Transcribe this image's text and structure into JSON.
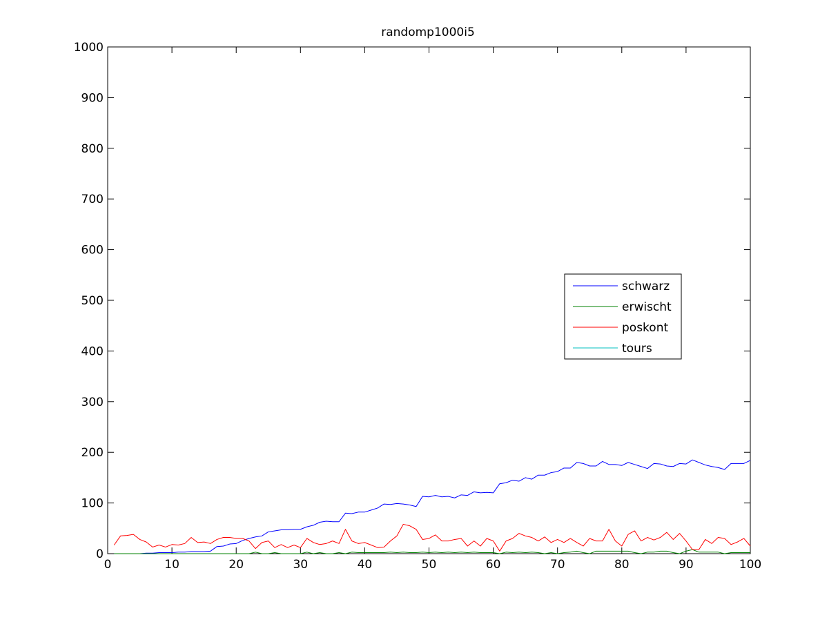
{
  "chart_data": {
    "type": "line",
    "title": "randomp1000i5",
    "xlabel": "",
    "ylabel": "",
    "xlim": [
      0,
      100
    ],
    "ylim": [
      0,
      1000
    ],
    "x_ticks": [
      0,
      10,
      20,
      30,
      40,
      50,
      60,
      70,
      80,
      90,
      100
    ],
    "y_ticks": [
      0,
      100,
      200,
      300,
      400,
      500,
      600,
      700,
      800,
      900,
      1000
    ],
    "grid": false,
    "legend_position": "right-middle",
    "series": [
      {
        "name": "schwarz",
        "color": "#0000ff",
        "x": [
          1,
          2,
          3,
          4,
          5,
          6,
          7,
          8,
          9,
          10,
          11,
          12,
          13,
          14,
          15,
          16,
          17,
          18,
          19,
          20,
          21,
          22,
          23,
          24,
          25,
          26,
          27,
          28,
          29,
          30,
          31,
          32,
          33,
          34,
          35,
          36,
          37,
          38,
          39,
          40,
          41,
          42,
          43,
          44,
          45,
          46,
          47,
          48,
          49,
          50,
          51,
          52,
          53,
          54,
          55,
          56,
          57,
          58,
          59,
          60,
          61,
          62,
          63,
          64,
          65,
          66,
          67,
          68,
          69,
          70,
          71,
          72,
          73,
          74,
          75,
          76,
          77,
          78,
          79,
          80,
          81,
          82,
          83,
          84,
          85,
          86,
          87,
          88,
          89,
          90,
          91,
          92,
          93,
          94,
          95,
          96,
          97,
          98,
          99,
          100
        ],
        "values": [
          0,
          0,
          0,
          0,
          0,
          1,
          1,
          2,
          2,
          2,
          3,
          3,
          4,
          4,
          4,
          5,
          14,
          15,
          19,
          20,
          26,
          30,
          33,
          35,
          43,
          45,
          47,
          47,
          48,
          48,
          53,
          56,
          62,
          64,
          63,
          63,
          80,
          79,
          82,
          82,
          86,
          90,
          98,
          97,
          99,
          98,
          96,
          93,
          113,
          112,
          115,
          112,
          113,
          110,
          116,
          115,
          122,
          120,
          121,
          120,
          138,
          140,
          145,
          143,
          150,
          147,
          155,
          155,
          160,
          162,
          169,
          169,
          180,
          178,
          173,
          173,
          182,
          176,
          176,
          174,
          180,
          176,
          172,
          168,
          178,
          177,
          173,
          172,
          178,
          177,
          185,
          180,
          175,
          172,
          170,
          166,
          178,
          178,
          178,
          184
        ]
      },
      {
        "name": "erwischt",
        "color": "#008000",
        "x": [
          1,
          2,
          3,
          4,
          5,
          6,
          7,
          8,
          9,
          10,
          11,
          12,
          13,
          14,
          15,
          16,
          17,
          18,
          19,
          20,
          21,
          22,
          23,
          24,
          25,
          26,
          27,
          28,
          29,
          30,
          31,
          32,
          33,
          34,
          35,
          36,
          37,
          38,
          39,
          40,
          41,
          42,
          43,
          44,
          45,
          46,
          47,
          48,
          49,
          50,
          51,
          52,
          53,
          54,
          55,
          56,
          57,
          58,
          59,
          60,
          61,
          62,
          63,
          64,
          65,
          66,
          67,
          68,
          69,
          70,
          71,
          72,
          73,
          74,
          75,
          76,
          77,
          78,
          79,
          80,
          81,
          82,
          83,
          84,
          85,
          86,
          87,
          88,
          89,
          90,
          91,
          92,
          93,
          94,
          95,
          96,
          97,
          98,
          99,
          100
        ],
        "values": [
          0,
          0,
          0,
          0,
          0,
          0,
          0,
          0,
          0,
          0,
          0,
          0,
          0,
          0,
          0,
          0,
          0,
          0,
          0,
          0,
          0,
          0,
          3,
          0,
          0,
          2,
          0,
          0,
          0,
          0,
          3,
          0,
          2,
          0,
          0,
          2,
          0,
          3,
          2,
          2,
          2,
          2,
          2,
          3,
          2,
          3,
          2,
          2,
          3,
          2,
          3,
          2,
          3,
          2,
          3,
          2,
          3,
          2,
          2,
          2,
          0,
          3,
          2,
          3,
          2,
          3,
          2,
          0,
          2,
          0,
          2,
          3,
          5,
          2,
          0,
          5,
          5,
          5,
          5,
          5,
          5,
          2,
          0,
          3,
          3,
          5,
          5,
          2,
          0,
          5,
          8,
          3,
          3,
          3,
          3,
          0,
          2,
          2,
          2,
          2
        ]
      },
      {
        "name": "poskont",
        "color": "#ff0000",
        "x": [
          1,
          2,
          3,
          4,
          5,
          6,
          7,
          8,
          9,
          10,
          11,
          12,
          13,
          14,
          15,
          16,
          17,
          18,
          19,
          20,
          21,
          22,
          23,
          24,
          25,
          26,
          27,
          28,
          29,
          30,
          31,
          32,
          33,
          34,
          35,
          36,
          37,
          38,
          39,
          40,
          41,
          42,
          43,
          44,
          45,
          46,
          47,
          48,
          49,
          50,
          51,
          52,
          53,
          54,
          55,
          56,
          57,
          58,
          59,
          60,
          61,
          62,
          63,
          64,
          65,
          66,
          67,
          68,
          69,
          70,
          71,
          72,
          73,
          74,
          75,
          76,
          77,
          78,
          79,
          80,
          81,
          82,
          83,
          84,
          85,
          86,
          87,
          88,
          89,
          90,
          91,
          92,
          93,
          94,
          95,
          96,
          97,
          98,
          99,
          100
        ],
        "values": [
          17,
          35,
          36,
          38,
          28,
          23,
          13,
          17,
          13,
          18,
          17,
          20,
          32,
          22,
          23,
          20,
          28,
          32,
          32,
          30,
          30,
          25,
          10,
          22,
          25,
          12,
          18,
          12,
          17,
          12,
          30,
          22,
          18,
          20,
          25,
          20,
          48,
          25,
          20,
          22,
          17,
          12,
          13,
          25,
          35,
          58,
          55,
          48,
          28,
          30,
          37,
          25,
          25,
          28,
          30,
          15,
          25,
          15,
          30,
          25,
          5,
          25,
          30,
          40,
          35,
          32,
          25,
          33,
          22,
          28,
          22,
          30,
          22,
          15,
          30,
          25,
          25,
          48,
          25,
          15,
          38,
          45,
          25,
          32,
          27,
          32,
          42,
          28,
          40,
          25,
          8,
          8,
          28,
          20,
          32,
          30,
          18,
          23,
          30,
          15
        ]
      },
      {
        "name": "tours",
        "color": "#00bfbf",
        "x": [],
        "values": []
      }
    ]
  }
}
